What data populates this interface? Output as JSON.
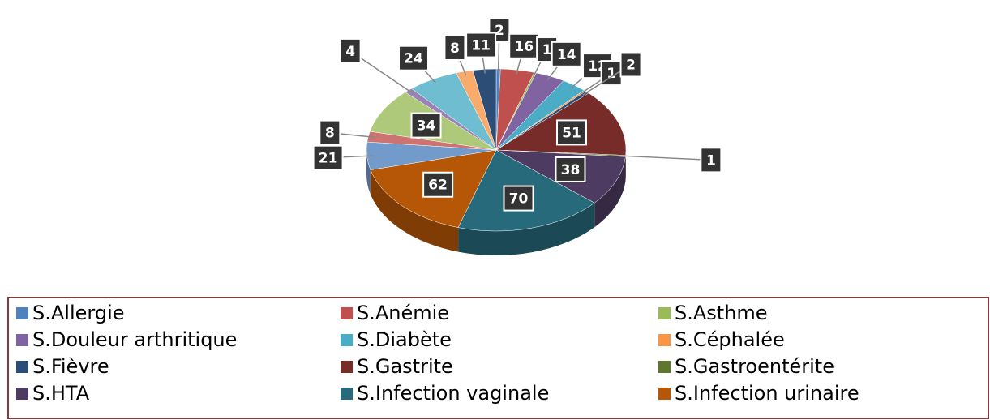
{
  "chart_data": {
    "type": "pie",
    "categories": [
      "S.Allergie",
      "S.Anémie",
      "S.Asthme",
      "S.Douleur arthritique",
      "S.Diabète",
      "S.Céphalée",
      "S.Fièvre",
      "S.Gastrite",
      "S.Gastroentérite",
      "S.HTA",
      "S.Infection vaginale",
      "S.Infection urinaire",
      null,
      null,
      null,
      null,
      null,
      null,
      null
    ],
    "values": [
      2,
      16,
      1,
      14,
      12,
      1,
      2,
      51,
      1,
      38,
      70,
      62,
      21,
      8,
      34,
      4,
      24,
      8,
      11
    ],
    "colors": [
      "#4f81bd",
      "#c0504d",
      "#9bbb59",
      "#8064a2",
      "#4bacc6",
      "#f79646",
      "#2c4d75",
      "#772c2a",
      "#5f7530",
      "#4d3b62",
      "#276a7c",
      "#b65708",
      "#729aca",
      "#cd7371",
      "#afc97a",
      "#9983b5",
      "#6fbdd1",
      "#f9ab6b",
      "#2c4d75"
    ],
    "legend": "bottom"
  }
}
